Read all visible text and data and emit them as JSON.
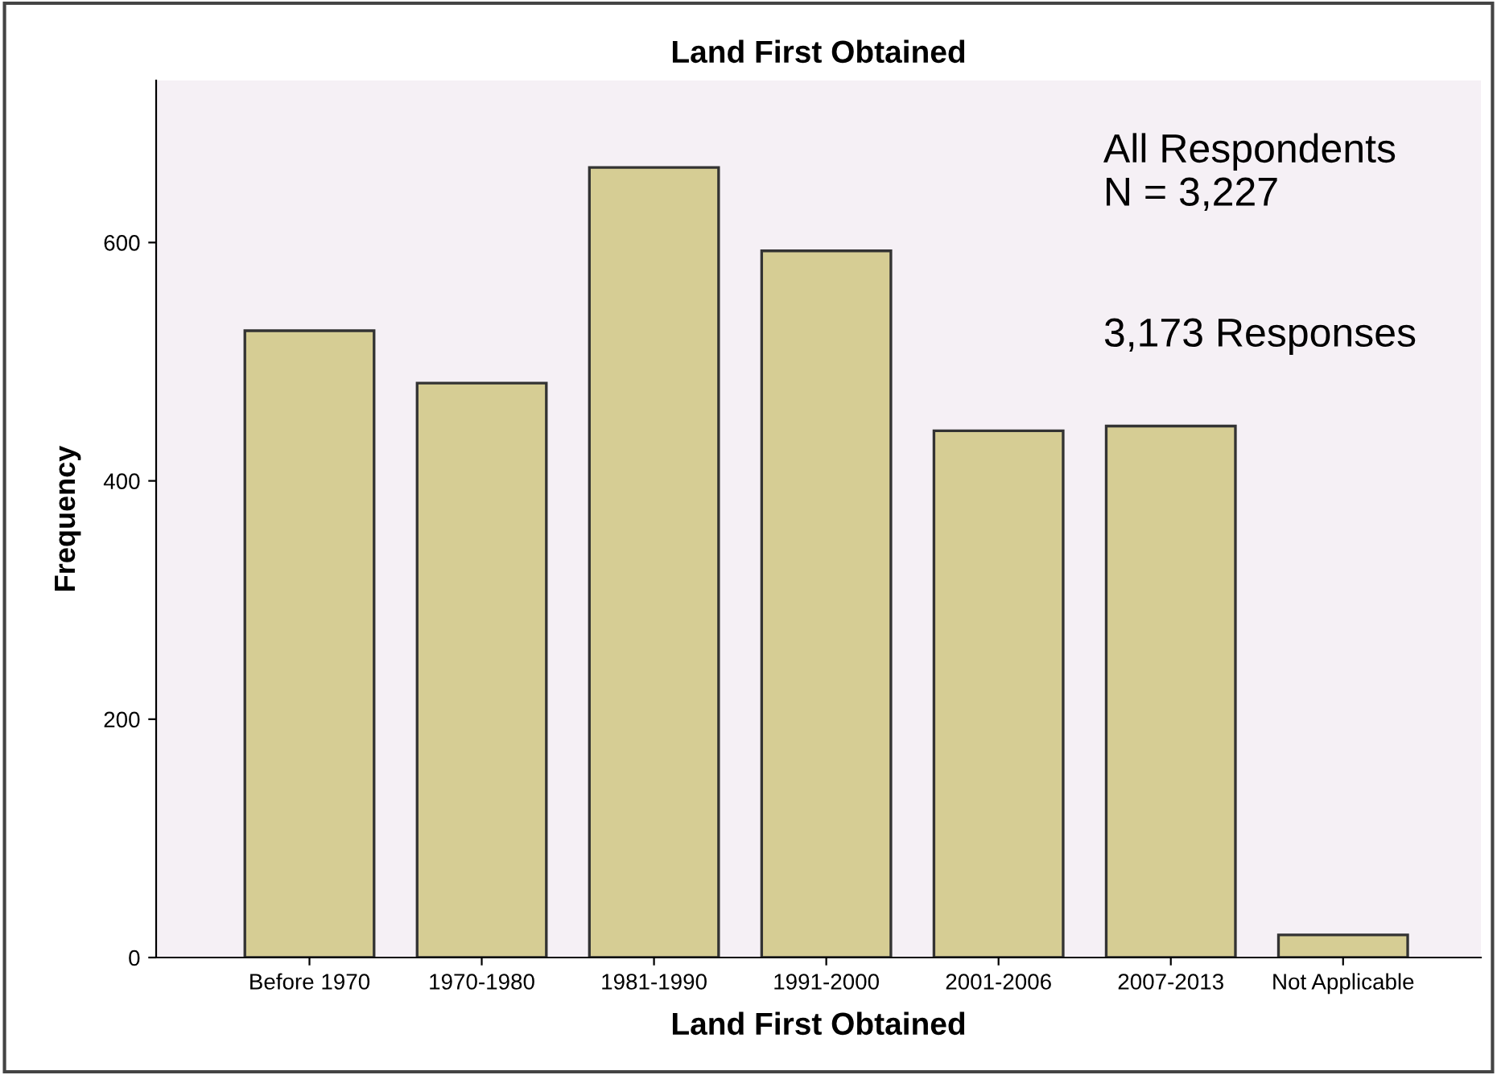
{
  "chart_data": {
    "type": "bar",
    "title": "Land First Obtained",
    "xlabel": "Land First Obtained",
    "ylabel": "Frequency",
    "categories": [
      "Before 1970",
      "1970-1980",
      "1981-1990",
      "1991-2000",
      "2001-2006",
      "2007-2013",
      "Not Applicable"
    ],
    "values": [
      526,
      482,
      663,
      593,
      442,
      446,
      19
    ],
    "color": "#d6cd94",
    "ylim": [
      0,
      736
    ],
    "yticks": [
      0,
      200,
      400,
      600
    ],
    "grid": false,
    "legend": false,
    "annotations": [
      "All Respondents\nN = 3,227",
      "3,173 Responses"
    ]
  }
}
